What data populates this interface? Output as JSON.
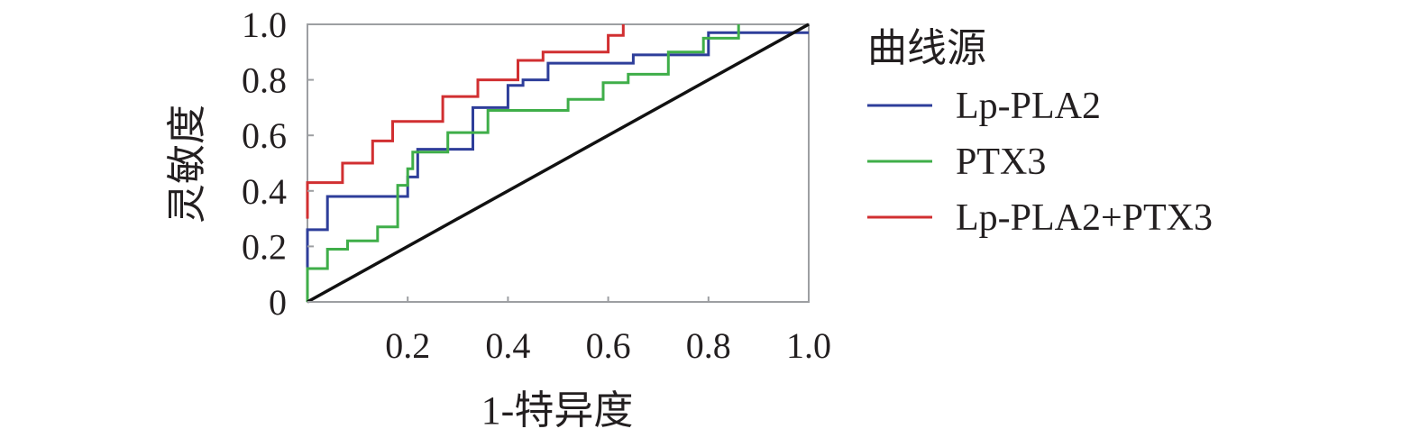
{
  "chart_data": {
    "type": "line",
    "title": "",
    "xlabel": "1-特异度",
    "ylabel": "灵敏度",
    "xlim": [
      0,
      1
    ],
    "ylim": [
      0,
      1
    ],
    "x_ticks": [
      "0.2",
      "0.4",
      "0.6",
      "0.8",
      "1.0"
    ],
    "y_ticks": [
      "0",
      "0.2",
      "0.4",
      "0.6",
      "0.8",
      "1.0"
    ],
    "grid": false,
    "legend_title": "曲线源",
    "legend_position": "right",
    "series": [
      {
        "name": "Lp-PLA2",
        "color": "#2e3e9a",
        "step": true,
        "points": [
          [
            0,
            0
          ],
          [
            0,
            0.26
          ],
          [
            0.04,
            0.26
          ],
          [
            0.04,
            0.38
          ],
          [
            0.2,
            0.38
          ],
          [
            0.2,
            0.45
          ],
          [
            0.22,
            0.45
          ],
          [
            0.22,
            0.55
          ],
          [
            0.33,
            0.55
          ],
          [
            0.33,
            0.7
          ],
          [
            0.4,
            0.7
          ],
          [
            0.4,
            0.78
          ],
          [
            0.43,
            0.78
          ],
          [
            0.43,
            0.8
          ],
          [
            0.48,
            0.8
          ],
          [
            0.48,
            0.86
          ],
          [
            0.65,
            0.86
          ],
          [
            0.65,
            0.89
          ],
          [
            0.8,
            0.89
          ],
          [
            0.8,
            0.97
          ],
          [
            1,
            0.97
          ]
        ]
      },
      {
        "name": "PTX3",
        "color": "#3fae49",
        "step": true,
        "points": [
          [
            0,
            0
          ],
          [
            0,
            0.12
          ],
          [
            0.04,
            0.12
          ],
          [
            0.04,
            0.19
          ],
          [
            0.08,
            0.19
          ],
          [
            0.08,
            0.22
          ],
          [
            0.14,
            0.22
          ],
          [
            0.14,
            0.27
          ],
          [
            0.18,
            0.27
          ],
          [
            0.18,
            0.42
          ],
          [
            0.2,
            0.42
          ],
          [
            0.2,
            0.48
          ],
          [
            0.21,
            0.48
          ],
          [
            0.21,
            0.54
          ],
          [
            0.28,
            0.54
          ],
          [
            0.28,
            0.61
          ],
          [
            0.36,
            0.61
          ],
          [
            0.36,
            0.69
          ],
          [
            0.52,
            0.69
          ],
          [
            0.52,
            0.73
          ],
          [
            0.59,
            0.73
          ],
          [
            0.59,
            0.79
          ],
          [
            0.64,
            0.79
          ],
          [
            0.64,
            0.82
          ],
          [
            0.72,
            0.82
          ],
          [
            0.72,
            0.9
          ],
          [
            0.79,
            0.9
          ],
          [
            0.79,
            0.95
          ],
          [
            0.86,
            0.95
          ],
          [
            0.86,
            1
          ]
        ]
      },
      {
        "name": "Lp-PLA2+PTX3",
        "color": "#d12f31",
        "step": true,
        "points": [
          [
            0,
            0.3
          ],
          [
            0,
            0.43
          ],
          [
            0.07,
            0.43
          ],
          [
            0.07,
            0.5
          ],
          [
            0.13,
            0.5
          ],
          [
            0.13,
            0.58
          ],
          [
            0.17,
            0.58
          ],
          [
            0.17,
            0.65
          ],
          [
            0.27,
            0.65
          ],
          [
            0.27,
            0.74
          ],
          [
            0.34,
            0.74
          ],
          [
            0.34,
            0.8
          ],
          [
            0.42,
            0.8
          ],
          [
            0.42,
            0.87
          ],
          [
            0.47,
            0.87
          ],
          [
            0.47,
            0.9
          ],
          [
            0.6,
            0.9
          ],
          [
            0.6,
            0.96
          ],
          [
            0.63,
            0.96
          ],
          [
            0.63,
            1
          ]
        ]
      },
      {
        "name": "",
        "color": "#111111",
        "step": false,
        "reference": true,
        "points": [
          [
            0,
            0
          ],
          [
            1,
            1
          ]
        ]
      }
    ]
  }
}
